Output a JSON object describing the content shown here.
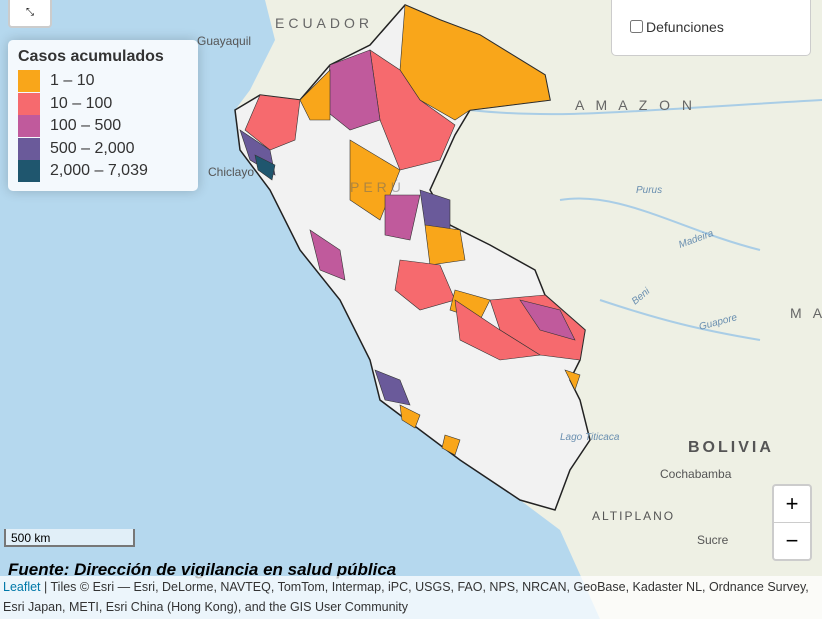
{
  "map": {
    "labels": {
      "ecuador": "ECUADOR",
      "guayaquil": "Guayaquil",
      "chiclayo": "Chiclayo",
      "peru": "PERÚ",
      "amazon": "A M A Z O N",
      "ma": "M A",
      "purus": "Purus",
      "madeira": "Madeira",
      "beni": "Beni",
      "guapore": "Guapore",
      "bolivia": "BOLIVIA",
      "cochabamba": "Cochabamba",
      "altiplano": "ALTIPLANO",
      "sucre": "Sucre",
      "lago": "Lago Titicaca"
    }
  },
  "legend": {
    "title": "Casos acumulados",
    "items": [
      {
        "label": "1 – 10",
        "color": "#f9a61a"
      },
      {
        "label": "10 – 100",
        "color": "#f66a6e"
      },
      {
        "label": "100 – 500",
        "color": "#c05a9c"
      },
      {
        "label": "500 – 2,000",
        "color": "#6a5a9a"
      },
      {
        "label": "2,000 – 7,039",
        "color": "#1f566e"
      }
    ]
  },
  "layer_control": {
    "option": "Defunciones"
  },
  "zoom": {
    "in": "+",
    "out": "−"
  },
  "scale": "500 km",
  "source": "Fuente: Dirección de vigilancia en salud pública",
  "attribution": {
    "link": "Leaflet",
    "text": " | Tiles © Esri — Esri, DeLorme, NAVTEQ, TomTom, Intermap, iPC, USGS, FAO, NPS, NRCAN, GeoBase, Kadaster NL, Ordnance Survey, Esri Japan, METI, Esri China (Hong Kong), and the GIS User Community"
  }
}
